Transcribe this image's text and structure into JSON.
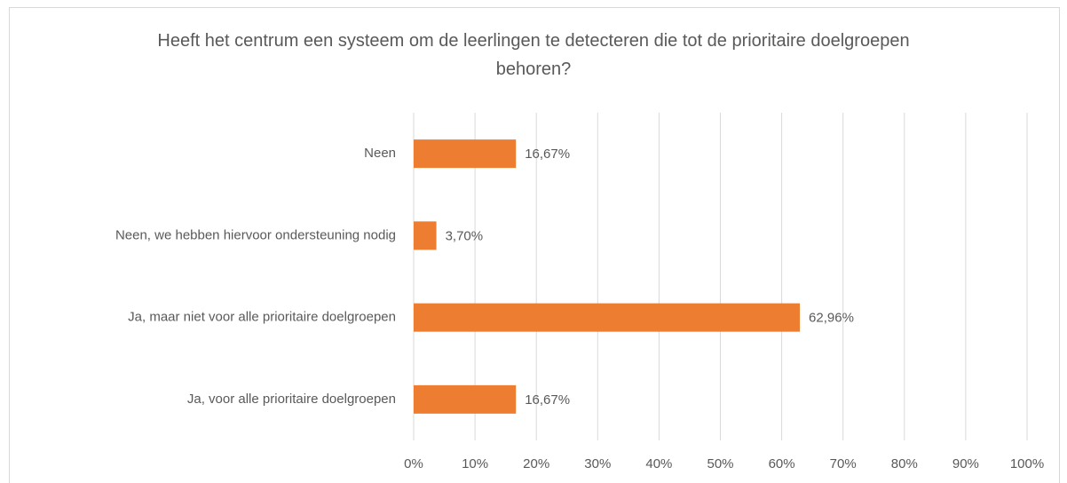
{
  "chart_data": {
    "type": "bar",
    "orientation": "horizontal",
    "title": "Heeft het centrum een systeem om de leerlingen te detecteren die tot de prioritaire doelgroepen behoren?",
    "categories": [
      "Neen",
      "Neen, we hebben hiervoor ondersteuning nodig",
      "Ja, maar niet voor alle prioritaire doelgroepen",
      "Ja, voor alle prioritaire doelgroepen"
    ],
    "values": [
      16.67,
      3.7,
      62.96,
      16.67
    ],
    "value_labels": [
      "16,67%",
      "3,70%",
      "62,96%",
      "16,67%"
    ],
    "color": "#ed7d31",
    "xlim": [
      0,
      100
    ],
    "xticks": [
      {
        "value": 0,
        "label": "0%"
      },
      {
        "value": 10,
        "label": "10%"
      },
      {
        "value": 20,
        "label": "20%"
      },
      {
        "value": 30,
        "label": "30%"
      },
      {
        "value": 40,
        "label": "40%"
      },
      {
        "value": 50,
        "label": "50%"
      },
      {
        "value": 60,
        "label": "60%"
      },
      {
        "value": 70,
        "label": "70%"
      },
      {
        "value": 80,
        "label": "80%"
      },
      {
        "value": 90,
        "label": "90%"
      },
      {
        "value": 100,
        "label": "100%"
      }
    ],
    "grid": true
  }
}
